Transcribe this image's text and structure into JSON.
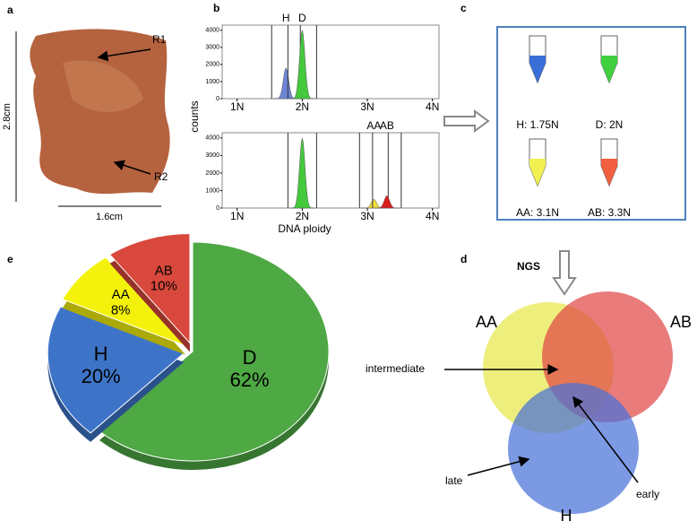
{
  "panel_labels": [
    "a",
    "b",
    "c",
    "d",
    "e"
  ],
  "photo": {
    "r1": "R1",
    "r2": "R2",
    "height": "2.8cm",
    "width": "1.6cm"
  },
  "tubes": [
    {
      "label": "H: 1.75N",
      "color": "#3a6fd8"
    },
    {
      "label": "D: 2N",
      "color": "#3fcf3f"
    },
    {
      "label": "AA: 3.1N",
      "color": "#f0f050"
    },
    {
      "label": "AB: 3.3N",
      "color": "#f06040"
    }
  ],
  "venn": {
    "method": "NGS",
    "sets": [
      {
        "label": "AA",
        "color": "#e8e84a"
      },
      {
        "label": "AB",
        "color": "#e04848"
      },
      {
        "label": "H",
        "color": "#4a72d8"
      }
    ],
    "annotations": [
      "intermediate",
      "late",
      "early"
    ]
  },
  "chart_data": [
    {
      "type": "histogram",
      "ylabel": "counts",
      "ylim": [
        0,
        4300
      ],
      "yticks": [
        0,
        1000,
        2000,
        3000,
        4000
      ],
      "xlim": [
        0.77,
        4.1
      ],
      "xticks": [
        {
          "value": 1,
          "label": "1N"
        },
        {
          "value": 2,
          "label": "2N"
        },
        {
          "value": 3,
          "label": "3N"
        },
        {
          "value": 4,
          "label": "4N"
        }
      ],
      "series": [
        {
          "name": "H",
          "color": "#6f86d6",
          "x": [
            1.75
          ],
          "values": [
            1800
          ]
        },
        {
          "name": "D",
          "color": "#44c83c",
          "x": [
            2.0
          ],
          "values": [
            4000
          ]
        }
      ]
    },
    {
      "type": "histogram",
      "xlabel": "DNA ploidy",
      "ylim": [
        0,
        4300
      ],
      "yticks": [
        0,
        1000,
        2000,
        3000,
        4000
      ],
      "xlim": [
        0.77,
        4.1
      ],
      "xticks": [
        {
          "value": 1,
          "label": "1N"
        },
        {
          "value": 2,
          "label": "2N"
        },
        {
          "value": 3,
          "label": "3N"
        },
        {
          "value": 4,
          "label": "4N"
        }
      ],
      "series": [
        {
          "color": "#44c83c",
          "x": [
            2.0
          ],
          "values": [
            4000
          ]
        },
        {
          "name": "AA",
          "color": "#f0e040",
          "x": [
            3.1
          ],
          "values": [
            500
          ]
        },
        {
          "name": "AB",
          "color": "#d82020",
          "x": [
            3.3
          ],
          "values": [
            700
          ]
        }
      ]
    },
    {
      "type": "pie",
      "categories": [
        "D",
        "H",
        "AA",
        "AB"
      ],
      "values": [
        62,
        20,
        8,
        10
      ],
      "value_labels": [
        "62%",
        "20%",
        "8%",
        "10%"
      ],
      "colors": [
        "#4ea844",
        "#3e74c8",
        "#f4f20c",
        "#d8483c"
      ]
    }
  ]
}
